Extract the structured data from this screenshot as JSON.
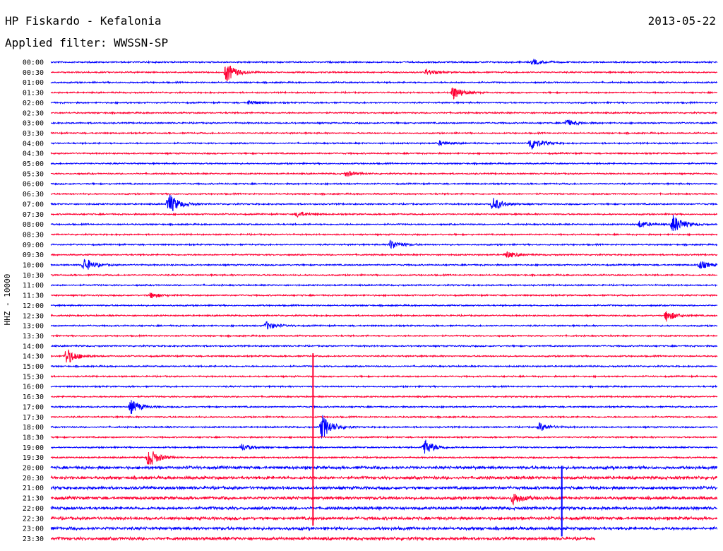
{
  "header": {
    "station": "HP Fiskardo - Kefalonia",
    "date": "2013-05-22",
    "filter": "Applied filter: WWSSN-SP"
  },
  "chart_data": {
    "type": "line",
    "title": "HP Fiskardo - Kefalonia",
    "subtitle": "Applied filter: WWSSN-SP",
    "date": "2013-05-22",
    "ylabel": "HHZ - 10000",
    "colors": [
      "#0000ff",
      "#ff0033"
    ],
    "row_labels": [
      "00:00",
      "00:30",
      "01:00",
      "01:30",
      "02:00",
      "02:30",
      "03:00",
      "03:30",
      "04:00",
      "04:30",
      "05:00",
      "05:30",
      "06:00",
      "06:30",
      "07:00",
      "07:30",
      "08:00",
      "08:30",
      "09:00",
      "09:30",
      "10:00",
      "10:30",
      "11:00",
      "11:30",
      "12:00",
      "12:30",
      "13:00",
      "13:30",
      "14:00",
      "14:30",
      "15:00",
      "15:30",
      "16:00",
      "16:30",
      "17:00",
      "17:30",
      "18:00",
      "18:30",
      "19:00",
      "19:30",
      "20:00",
      "20:30",
      "21:00",
      "21:30",
      "22:00",
      "22:30",
      "23:00",
      "23:30"
    ],
    "row_minutes": 30,
    "last_row_end_minute": 24.5,
    "background_noise": [
      1,
      1,
      1,
      1,
      1,
      1,
      1,
      1,
      1,
      1,
      1,
      1,
      1,
      1,
      1,
      1,
      1,
      1,
      1,
      1,
      1,
      1,
      1,
      1,
      1,
      1,
      1,
      1,
      1,
      1,
      1,
      1,
      1,
      1,
      1,
      1,
      1,
      1,
      1,
      1,
      2,
      2,
      2,
      2,
      2,
      2,
      2,
      2
    ],
    "events": [
      {
        "row": 0,
        "minute": 21.7,
        "amp": 4
      },
      {
        "row": 1,
        "minute": 7.9,
        "amp": 14
      },
      {
        "row": 1,
        "minute": 16.9,
        "amp": 4
      },
      {
        "row": 3,
        "minute": 18.1,
        "amp": 10
      },
      {
        "row": 4,
        "minute": 8.9,
        "amp": 3
      },
      {
        "row": 6,
        "minute": 23.2,
        "amp": 5
      },
      {
        "row": 8,
        "minute": 21.6,
        "amp": 10
      },
      {
        "row": 8,
        "minute": 17.5,
        "amp": 3
      },
      {
        "row": 11,
        "minute": 13.3,
        "amp": 4
      },
      {
        "row": 14,
        "minute": 5.3,
        "amp": 16
      },
      {
        "row": 14,
        "minute": 19.9,
        "amp": 10
      },
      {
        "row": 15,
        "minute": 11.1,
        "amp": 4
      },
      {
        "row": 16,
        "minute": 28.0,
        "amp": 14
      },
      {
        "row": 16,
        "minute": 26.5,
        "amp": 5
      },
      {
        "row": 18,
        "minute": 15.3,
        "amp": 7
      },
      {
        "row": 19,
        "minute": 20.5,
        "amp": 5
      },
      {
        "row": 20,
        "minute": 1.5,
        "amp": 10
      },
      {
        "row": 20,
        "minute": 29.2,
        "amp": 6
      },
      {
        "row": 23,
        "minute": 4.5,
        "amp": 4
      },
      {
        "row": 25,
        "minute": 27.7,
        "amp": 8
      },
      {
        "row": 26,
        "minute": 9.7,
        "amp": 6
      },
      {
        "row": 29,
        "minute": 0.7,
        "amp": 12
      },
      {
        "row": 34,
        "minute": 3.6,
        "amp": 10
      },
      {
        "row": 36,
        "minute": 12.2,
        "amp": 18
      },
      {
        "row": 36,
        "minute": 22.0,
        "amp": 6
      },
      {
        "row": 38,
        "minute": 16.8,
        "amp": 12
      },
      {
        "row": 38,
        "minute": 8.6,
        "amp": 5
      },
      {
        "row": 39,
        "minute": 4.4,
        "amp": 14
      },
      {
        "row": 43,
        "minute": 20.8,
        "amp": 8
      }
    ],
    "spikes": [
      {
        "row": 29,
        "minute": 11.8,
        "up": 4,
        "down": 240
      },
      {
        "row": 44,
        "minute": 23.0,
        "up": 60,
        "down": 40
      }
    ],
    "ylim": [
      -20,
      20
    ]
  }
}
